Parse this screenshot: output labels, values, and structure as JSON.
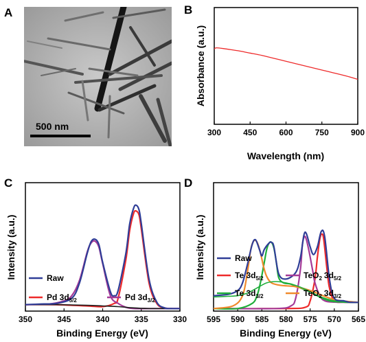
{
  "panels": {
    "a": {
      "letter": "A",
      "scale_bar": "500 nm"
    },
    "b": {
      "letter": "B"
    },
    "c": {
      "letter": "C"
    },
    "d": {
      "letter": "D"
    }
  },
  "colors": {
    "raw": "#2f3d97",
    "red": "#ee2a2a",
    "magenta": "#a43a98",
    "green": "#1fae3a",
    "orange": "#f08a2c",
    "background": "#1a1a1a"
  },
  "chart_data": [
    {
      "id": "B",
      "type": "line",
      "xlabel": "Wavelength (nm)",
      "ylabel": "Absorbance (a.u.)",
      "xlim": [
        300,
        900
      ],
      "xticks": [
        "300",
        "450",
        "600",
        "750",
        "900"
      ],
      "yticks_shown": false,
      "series": [
        {
          "color": "#ee2a2a",
          "x": [
            300,
            310,
            350,
            400,
            450,
            500,
            550,
            600,
            650,
            700,
            750,
            800,
            850,
            900
          ],
          "y": [
            0.645,
            0.655,
            0.645,
            0.63,
            0.61,
            0.59,
            0.565,
            0.54,
            0.515,
            0.49,
            0.465,
            0.44,
            0.415,
            0.385
          ]
        }
      ]
    },
    {
      "id": "C",
      "type": "line",
      "xlabel": "Binding Energy (eV)",
      "ylabel": "Intensity (a.u.)",
      "xlim": [
        350,
        330
      ],
      "xticks": [
        "350",
        "345",
        "340",
        "335",
        "330"
      ],
      "yticks_shown": false,
      "legend": [
        {
          "label_main": "Raw",
          "label_sub": "",
          "color": "#2f3d97"
        },
        {
          "label_main": "Pd 3d",
          "label_sub": "5/2",
          "color": "#ee2a2a"
        },
        {
          "label_main": "Pd 3d",
          "label_sub": "3/2",
          "color": "#a43a98"
        }
      ],
      "series": [
        {
          "name": "Raw",
          "color": "#2f3d97",
          "x": [
            350,
            348,
            346,
            344,
            343,
            342,
            341.5,
            341,
            340.5,
            340,
            339,
            338.5,
            338,
            337,
            336.5,
            336,
            335.7,
            335.3,
            335,
            334,
            333,
            332,
            331,
            330
          ],
          "y": [
            0.05,
            0.055,
            0.06,
            0.1,
            0.22,
            0.45,
            0.54,
            0.56,
            0.52,
            0.38,
            0.15,
            0.12,
            0.16,
            0.45,
            0.68,
            0.8,
            0.825,
            0.79,
            0.68,
            0.25,
            0.07,
            0.025,
            0.02,
            0.02
          ]
        },
        {
          "name": "Pd 3d5/2",
          "color": "#ee2a2a",
          "x": [
            350,
            346,
            342,
            340,
            338.5,
            338,
            337,
            336.5,
            336,
            335.7,
            335.3,
            335,
            334,
            333,
            332,
            331,
            330
          ],
          "y": [
            0.05,
            0.05,
            0.04,
            0.035,
            0.06,
            0.1,
            0.4,
            0.63,
            0.76,
            0.78,
            0.75,
            0.64,
            0.22,
            0.06,
            0.025,
            0.02,
            0.02
          ]
        },
        {
          "name": "Pd 3d3/2",
          "color": "#a43a98",
          "x": [
            350,
            347,
            345,
            344,
            343,
            342,
            341.5,
            341,
            340.5,
            340,
            339,
            338,
            337,
            336,
            334,
            332,
            330
          ],
          "y": [
            0.05,
            0.055,
            0.08,
            0.12,
            0.24,
            0.46,
            0.53,
            0.545,
            0.5,
            0.37,
            0.12,
            0.06,
            0.03,
            0.02,
            0.02,
            0.02,
            0.02
          ]
        },
        {
          "name": "Background",
          "color": "#1a1a1a",
          "x": [
            350,
            346,
            342,
            340,
            338,
            336,
            334,
            332,
            330
          ],
          "y": [
            0.05,
            0.05,
            0.045,
            0.04,
            0.035,
            0.025,
            0.02,
            0.02,
            0.02
          ]
        }
      ]
    },
    {
      "id": "D",
      "type": "line",
      "xlabel": "Binding Energy (eV)",
      "ylabel": "Intensity (a.u.)",
      "xlim": [
        595,
        565
      ],
      "xticks": [
        "595",
        "590",
        "585",
        "580",
        "575",
        "570",
        "565"
      ],
      "yticks_shown": false,
      "legend": [
        {
          "label_main": "Raw",
          "label_sub": "",
          "color": "#2f3d97"
        },
        {
          "label_main": "Te 3d",
          "label_sub": "5/2",
          "color": "#ee2a2a"
        },
        {
          "label_main": "TeO",
          "label_sub": "",
          "label_tail": "3d",
          "label_tail_sub": "5/2",
          "tail_sub_prefix": "2",
          "color": "#a43a98"
        },
        {
          "label_main": "Te 3d",
          "label_sub": "3/2",
          "color": "#1fae3a"
        },
        {
          "label_main": "TeO",
          "label_sub": "",
          "label_tail": "3d",
          "label_tail_sub": "3/2",
          "tail_sub_prefix": "2",
          "color": "#f08a2c"
        }
      ],
      "series": [
        {
          "name": "Raw",
          "color": "#2f3d97",
          "x": [
            595,
            592,
            590,
            589,
            588,
            587,
            586.3,
            585.5,
            585,
            584.5,
            583.5,
            583,
            582.5,
            581.5,
            580,
            578,
            577,
            576.3,
            575.8,
            575,
            574.3,
            573.5,
            572.7,
            572,
            571,
            570,
            568,
            567,
            566,
            565
          ],
          "y": [
            0.12,
            0.13,
            0.16,
            0.22,
            0.36,
            0.52,
            0.555,
            0.48,
            0.43,
            0.48,
            0.53,
            0.535,
            0.5,
            0.29,
            0.25,
            0.3,
            0.42,
            0.59,
            0.605,
            0.5,
            0.44,
            0.5,
            0.62,
            0.58,
            0.25,
            0.1,
            0.08,
            0.07,
            0.068,
            0.068
          ]
        },
        {
          "name": "Te 3d5/2",
          "color": "#ee2a2a",
          "x": [
            595,
            580,
            576,
            575,
            574,
            573.5,
            573,
            572.6,
            572.2,
            571.5,
            571,
            570,
            568,
            565
          ],
          "y": [
            0.02,
            0.02,
            0.03,
            0.08,
            0.25,
            0.42,
            0.56,
            0.6,
            0.56,
            0.32,
            0.18,
            0.08,
            0.07,
            0.068
          ]
        },
        {
          "name": "TeO2 3d5/2",
          "color": "#a43a98",
          "x": [
            595,
            582,
            579,
            578,
            577,
            576.6,
            576.2,
            575.8,
            575.2,
            574.5,
            574,
            573,
            572,
            570,
            565
          ],
          "y": [
            0.02,
            0.02,
            0.04,
            0.1,
            0.33,
            0.52,
            0.58,
            0.56,
            0.46,
            0.32,
            0.22,
            0.12,
            0.08,
            0.07,
            0.068
          ]
        },
        {
          "name": "Te 3d3/2",
          "color": "#1fae3a",
          "x": [
            595,
            590,
            587,
            586,
            585.3,
            584.5,
            584,
            583.5,
            583,
            582.5,
            582,
            581.5,
            580.5,
            579,
            577,
            575,
            573,
            571,
            568,
            565
          ],
          "y": [
            0.02,
            0.02,
            0.06,
            0.12,
            0.22,
            0.38,
            0.48,
            0.53,
            0.535,
            0.49,
            0.38,
            0.26,
            0.22,
            0.21,
            0.18,
            0.15,
            0.11,
            0.08,
            0.07,
            0.068
          ]
        },
        {
          "name": "TeO2 3d3/2",
          "color": "#f08a2c",
          "x": [
            595,
            591,
            589,
            588,
            587.3,
            586.8,
            586.3,
            585.8,
            585.2,
            584.6,
            584,
            583,
            581,
            578,
            575,
            570,
            565
          ],
          "y": [
            0.02,
            0.04,
            0.12,
            0.3,
            0.48,
            0.54,
            0.55,
            0.52,
            0.44,
            0.34,
            0.27,
            0.22,
            0.2,
            0.19,
            0.16,
            0.09,
            0.068
          ]
        },
        {
          "name": "Background",
          "color": "#1fae3a",
          "x": [
            595,
            592,
            590,
            588,
            586,
            584,
            582,
            580,
            578,
            576,
            574,
            572,
            570,
            568,
            566,
            565
          ],
          "y": [
            0.11,
            0.115,
            0.12,
            0.14,
            0.18,
            0.22,
            0.23,
            0.22,
            0.2,
            0.17,
            0.13,
            0.1,
            0.08,
            0.072,
            0.068,
            0.068
          ]
        }
      ]
    }
  ]
}
